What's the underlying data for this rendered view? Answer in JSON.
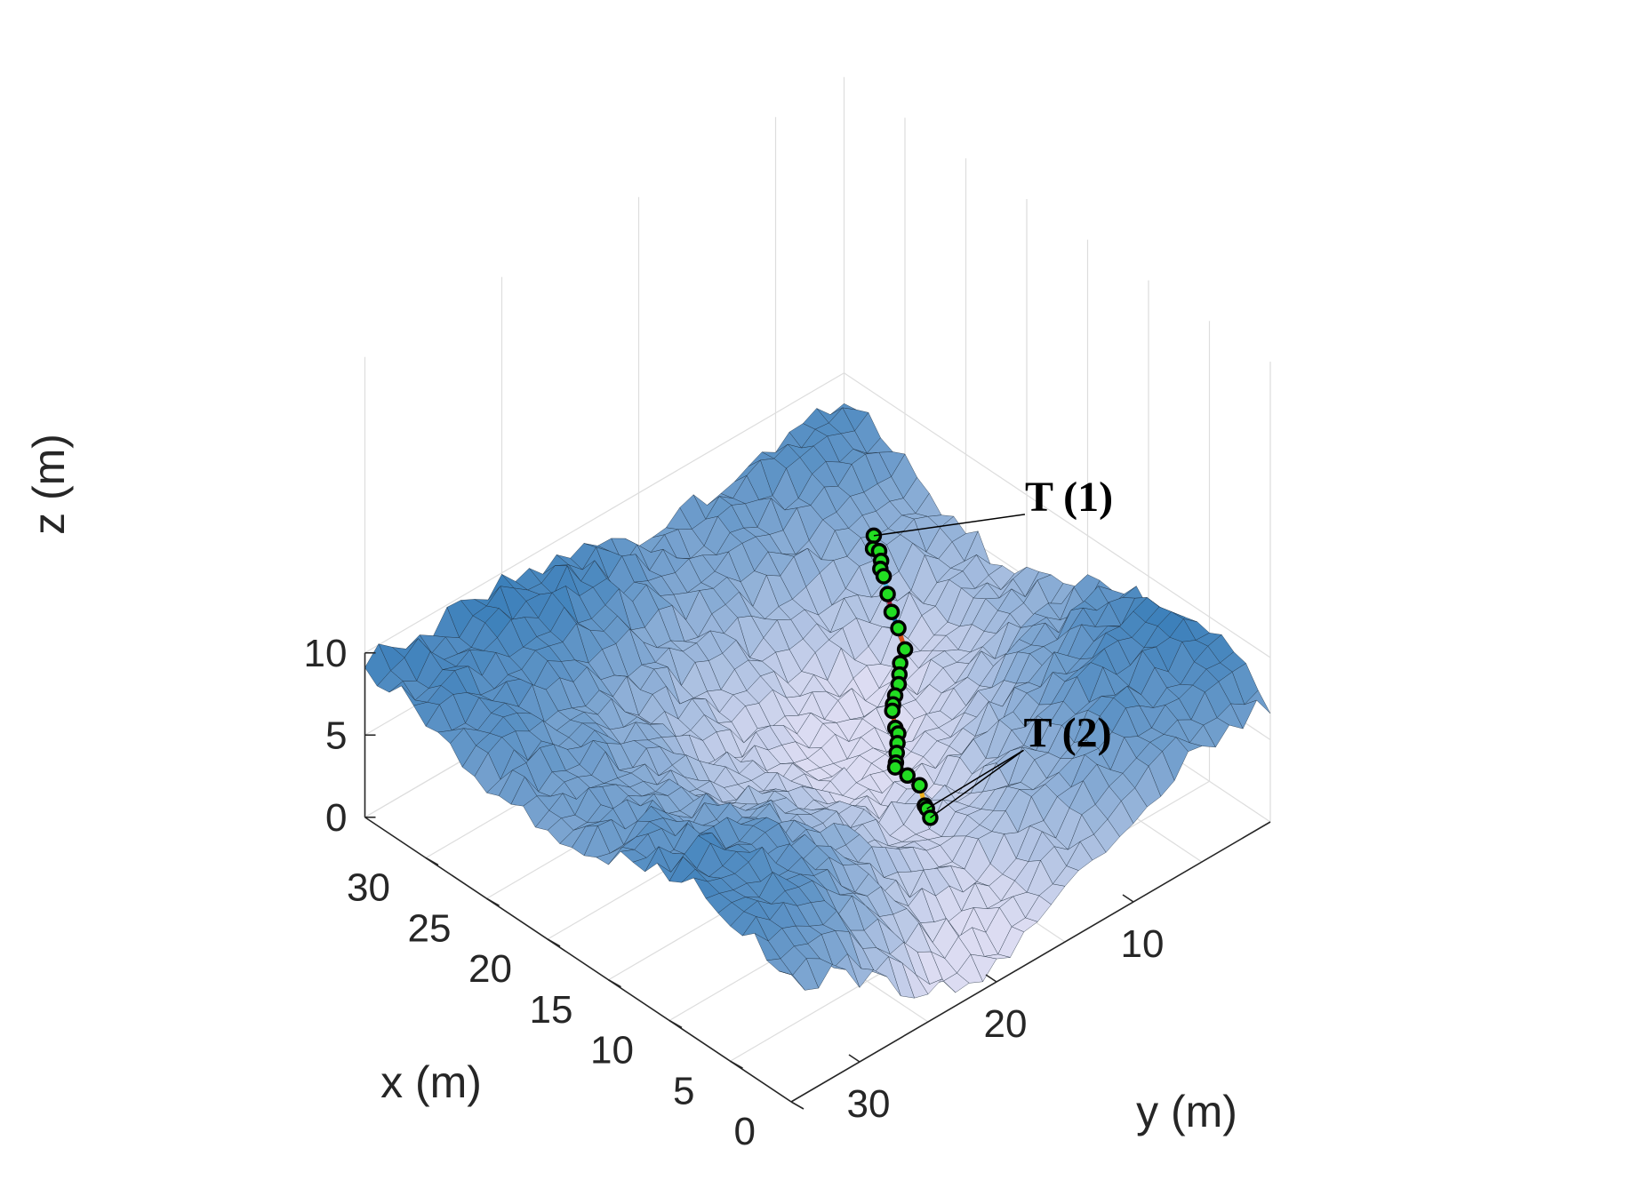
{
  "chart_data": {
    "type": "surface3d",
    "title": "",
    "xlabel": "x (m)",
    "ylabel": "y (m)",
    "zlabel": "z (m)",
    "xlim": [
      0,
      35
    ],
    "ylim": [
      0,
      35
    ],
    "zlim": [
      0,
      10
    ],
    "x_ticks": [
      "0",
      "5",
      "10",
      "15",
      "20",
      "25",
      "30"
    ],
    "y_ticks": [
      "10",
      "20",
      "30"
    ],
    "z_ticks": [
      "0",
      "5",
      "10"
    ],
    "grid": true,
    "surface": {
      "grid_size": 35,
      "colormap_from": "#dcdcf2",
      "colormap_to": "#1f6fb0",
      "edge_color": "#1a2a3a"
    },
    "path": {
      "marker_fill": "#22dd22",
      "marker_edge": "#000000",
      "segment_colors": [
        "#0072bd",
        "#d95319",
        "#edb120",
        "#7e2f8e",
        "#77ac30",
        "#4dbeee",
        "#a2142f"
      ],
      "points": [
        {
          "x": 27.5,
          "y": 4.5,
          "z": 6.0
        },
        {
          "x": 27.0,
          "y": 5.0,
          "z": 5.7
        },
        {
          "x": 26.5,
          "y": 5.0,
          "z": 5.8
        },
        {
          "x": 26.0,
          "y": 5.3,
          "z": 5.6
        },
        {
          "x": 25.5,
          "y": 5.8,
          "z": 5.6
        },
        {
          "x": 25.0,
          "y": 6.0,
          "z": 5.5
        },
        {
          "x": 24.0,
          "y": 6.6,
          "z": 5.2
        },
        {
          "x": 23.0,
          "y": 7.2,
          "z": 4.9
        },
        {
          "x": 22.0,
          "y": 7.6,
          "z": 4.6
        },
        {
          "x": 21.0,
          "y": 8.0,
          "z": 4.0
        },
        {
          "x": 20.5,
          "y": 8.8,
          "z": 3.8
        },
        {
          "x": 20.0,
          "y": 9.3,
          "z": 3.6
        },
        {
          "x": 19.5,
          "y": 9.8,
          "z": 3.5
        },
        {
          "x": 19.0,
          "y": 10.5,
          "z": 3.4
        },
        {
          "x": 18.5,
          "y": 11.1,
          "z": 3.4
        },
        {
          "x": 18.0,
          "y": 11.6,
          "z": 3.5
        },
        {
          "x": 17.3,
          "y": 12.0,
          "z": 3.0
        },
        {
          "x": 16.5,
          "y": 12.5,
          "z": 3.3
        },
        {
          "x": 16.0,
          "y": 13.0,
          "z": 3.2
        },
        {
          "x": 15.5,
          "y": 13.5,
          "z": 3.1
        },
        {
          "x": 15.0,
          "y": 14.0,
          "z": 3.0
        },
        {
          "x": 14.5,
          "y": 14.5,
          "z": 3.2
        },
        {
          "x": 13.5,
          "y": 14.5,
          "z": 3.2
        },
        {
          "x": 12.5,
          "y": 14.5,
          "z": 3.1
        },
        {
          "x": 11.5,
          "y": 15.0,
          "z": 2.6
        },
        {
          "x": 11.0,
          "y": 15.3,
          "z": 2.8
        },
        {
          "x": 10.5,
          "y": 15.5,
          "z": 2.6
        }
      ]
    },
    "annotations": [
      {
        "text": "T (1)",
        "target_point": 0
      },
      {
        "text": "T (2)",
        "target_point": 26
      }
    ]
  }
}
